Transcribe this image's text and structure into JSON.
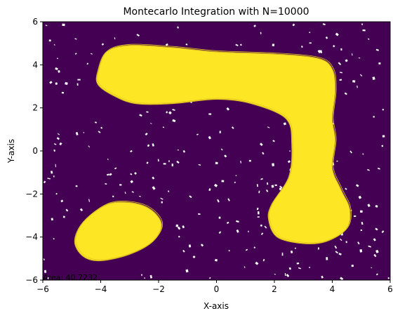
{
  "chart_data": {
    "type": "heatmap",
    "title": "Montecarlo Integration with N=10000",
    "xlabel": "X-axis",
    "ylabel": "Y-axis",
    "xlim": [
      -6,
      6
    ],
    "ylim": [
      -6,
      6
    ],
    "xticks": [
      -6,
      -4,
      -2,
      0,
      2,
      4,
      6
    ],
    "yticks": [
      -6,
      -4,
      -2,
      0,
      2,
      4,
      6
    ],
    "grid": false,
    "legend": "none",
    "colors": {
      "outside": "#440154",
      "inside": "#fde725",
      "contour": "#fde725"
    },
    "annotation": "Area: 40.7232",
    "regions": [
      {
        "shape": "upper-arm",
        "points": [
          [
            -4.1,
            3.7
          ],
          [
            -3.8,
            4.6
          ],
          [
            -3.0,
            4.9
          ],
          [
            -1.5,
            4.8
          ],
          [
            0,
            4.6
          ],
          [
            2.0,
            4.5
          ],
          [
            3.5,
            4.3
          ],
          [
            4.0,
            3.8
          ],
          [
            4.1,
            2.8
          ],
          [
            4.0,
            1.5
          ],
          [
            4.1,
            0.5
          ],
          [
            4.0,
            -0.8
          ],
          [
            4.3,
            -1.8
          ],
          [
            4.6,
            -2.7
          ],
          [
            4.5,
            -3.6
          ],
          [
            3.8,
            -4.2
          ],
          [
            3.0,
            -4.3
          ],
          [
            2.1,
            -4.0
          ],
          [
            1.8,
            -3.2
          ],
          [
            1.9,
            -2.5
          ],
          [
            2.5,
            -1.2
          ],
          [
            2.6,
            0.3
          ],
          [
            2.4,
            1.5
          ],
          [
            1.2,
            2.2
          ],
          [
            0,
            2.4
          ],
          [
            -1.5,
            2.2
          ],
          [
            -2.8,
            2.2
          ],
          [
            -3.6,
            2.6
          ],
          [
            -4.1,
            3.1
          ]
        ]
      },
      {
        "shape": "lower-blob",
        "points": [
          [
            -4.9,
            -4.2
          ],
          [
            -4.6,
            -3.3
          ],
          [
            -3.8,
            -2.5
          ],
          [
            -3.0,
            -2.4
          ],
          [
            -2.3,
            -2.7
          ],
          [
            -1.9,
            -3.4
          ],
          [
            -2.2,
            -4.2
          ],
          [
            -3.0,
            -4.8
          ],
          [
            -4.0,
            -5.1
          ],
          [
            -4.6,
            -4.9
          ]
        ]
      }
    ]
  }
}
